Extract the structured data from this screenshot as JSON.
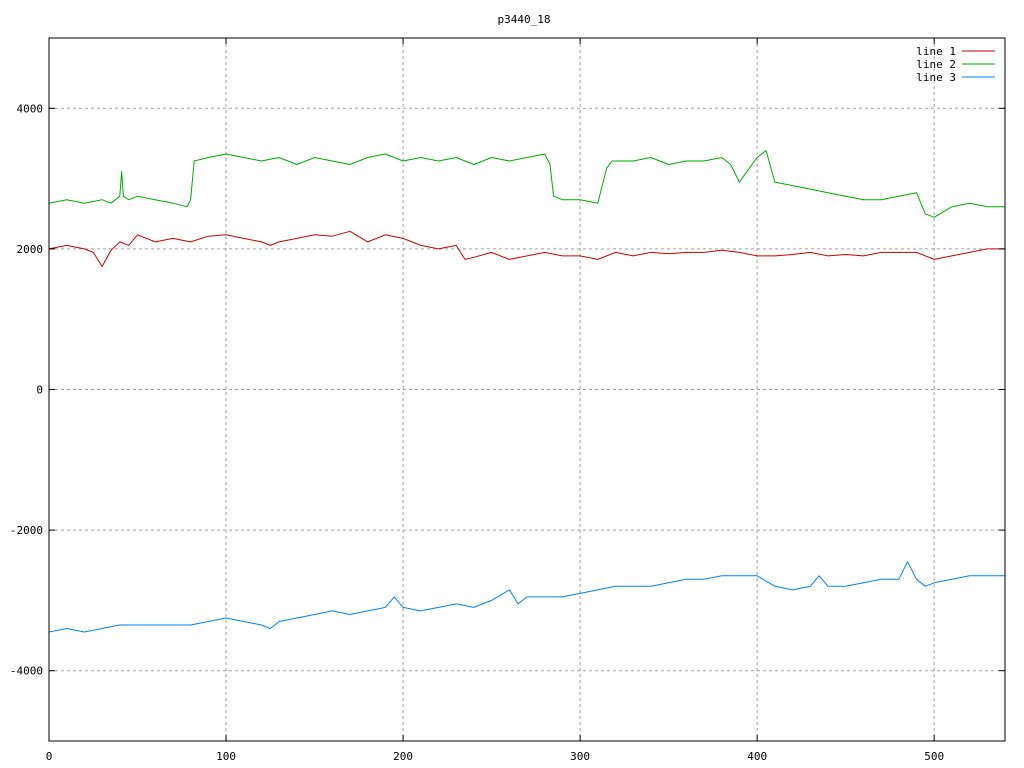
{
  "chart_data": {
    "type": "line",
    "title": "p3440_18",
    "xlabel": "",
    "ylabel": "",
    "xlim": [
      0,
      540
    ],
    "ylim": [
      -5000,
      5000
    ],
    "xticks": [
      0,
      100,
      200,
      300,
      400,
      500
    ],
    "yticks": [
      -4000,
      -2000,
      0,
      2000,
      4000
    ],
    "xtick_labels": [
      "0",
      "100",
      "200",
      "300",
      "400",
      "500"
    ],
    "ytick_labels": [
      "-4000",
      "-2000",
      "0",
      "2000",
      "4000"
    ],
    "grid": true,
    "legend_position": "top-right",
    "series": [
      {
        "name": "line 1",
        "color": "#cc0000",
        "x": [
          0,
          10,
          20,
          25,
          30,
          35,
          40,
          45,
          50,
          60,
          70,
          80,
          90,
          100,
          110,
          120,
          125,
          130,
          140,
          150,
          160,
          170,
          180,
          190,
          200,
          210,
          220,
          230,
          235,
          240,
          250,
          260,
          270,
          280,
          290,
          300,
          310,
          320,
          330,
          340,
          350,
          360,
          370,
          380,
          390,
          400,
          410,
          420,
          430,
          440,
          450,
          460,
          470,
          480,
          490,
          500,
          510,
          520,
          530,
          540
        ],
        "y": [
          2000,
          2050,
          2000,
          1950,
          1750,
          1980,
          2100,
          2050,
          2200,
          2100,
          2150,
          2100,
          2180,
          2200,
          2150,
          2100,
          2050,
          2100,
          2150,
          2200,
          2180,
          2250,
          2100,
          2200,
          2150,
          2050,
          2000,
          2050,
          1850,
          1880,
          1950,
          1850,
          1900,
          1950,
          1900,
          1900,
          1850,
          1950,
          1900,
          1950,
          1930,
          1950,
          1950,
          1980,
          1950,
          1900,
          1900,
          1920,
          1950,
          1900,
          1920,
          1900,
          1950,
          1950,
          1950,
          1850,
          1900,
          1950,
          2000,
          2000
        ]
      },
      {
        "name": "line 2",
        "color": "#00aa00",
        "x": [
          0,
          10,
          20,
          30,
          35,
          40,
          41,
          42,
          45,
          50,
          60,
          70,
          78,
          80,
          82,
          90,
          100,
          110,
          120,
          130,
          140,
          150,
          160,
          170,
          180,
          190,
          200,
          210,
          220,
          230,
          240,
          250,
          260,
          270,
          280,
          283,
          285,
          290,
          300,
          310,
          315,
          318,
          320,
          330,
          340,
          350,
          360,
          370,
          380,
          385,
          390,
          400,
          405,
          410,
          420,
          430,
          440,
          450,
          460,
          470,
          480,
          490,
          495,
          500,
          510,
          520,
          530,
          540
        ],
        "y": [
          2650,
          2700,
          2650,
          2700,
          2650,
          2750,
          3100,
          2750,
          2700,
          2750,
          2700,
          2650,
          2600,
          2700,
          3250,
          3300,
          3350,
          3300,
          3250,
          3300,
          3200,
          3300,
          3250,
          3200,
          3300,
          3350,
          3250,
          3300,
          3250,
          3300,
          3200,
          3300,
          3250,
          3300,
          3350,
          3200,
          2750,
          2700,
          2700,
          2650,
          3150,
          3250,
          3250,
          3250,
          3300,
          3200,
          3250,
          3250,
          3300,
          3200,
          2950,
          3300,
          3400,
          2950,
          2900,
          2850,
          2800,
          2750,
          2700,
          2700,
          2750,
          2800,
          2500,
          2450,
          2600,
          2650,
          2600,
          2600
        ]
      },
      {
        "name": "line 3",
        "color": "#0080ff",
        "x": [
          0,
          10,
          20,
          30,
          40,
          50,
          60,
          70,
          80,
          90,
          100,
          110,
          120,
          125,
          130,
          140,
          150,
          160,
          170,
          180,
          190,
          195,
          200,
          210,
          220,
          230,
          240,
          250,
          260,
          265,
          270,
          280,
          290,
          300,
          310,
          320,
          330,
          340,
          350,
          360,
          370,
          380,
          390,
          400,
          410,
          420,
          430,
          435,
          440,
          450,
          460,
          470,
          480,
          485,
          490,
          495,
          500,
          510,
          520,
          530,
          540
        ],
        "y": [
          -3450,
          -3400,
          -3450,
          -3400,
          -3350,
          -3350,
          -3350,
          -3350,
          -3350,
          -3300,
          -3250,
          -3300,
          -3350,
          -3400,
          -3300,
          -3250,
          -3200,
          -3150,
          -3200,
          -3150,
          -3100,
          -2950,
          -3100,
          -3150,
          -3100,
          -3050,
          -3100,
          -3000,
          -2850,
          -3050,
          -2950,
          -2950,
          -2950,
          -2900,
          -2850,
          -2800,
          -2800,
          -2800,
          -2750,
          -2700,
          -2700,
          -2650,
          -2650,
          -2650,
          -2800,
          -2850,
          -2800,
          -2650,
          -2800,
          -2800,
          -2750,
          -2700,
          -2700,
          -2450,
          -2700,
          -2800,
          -2750,
          -2700,
          -2650,
          -2650,
          -2650
        ]
      }
    ]
  }
}
